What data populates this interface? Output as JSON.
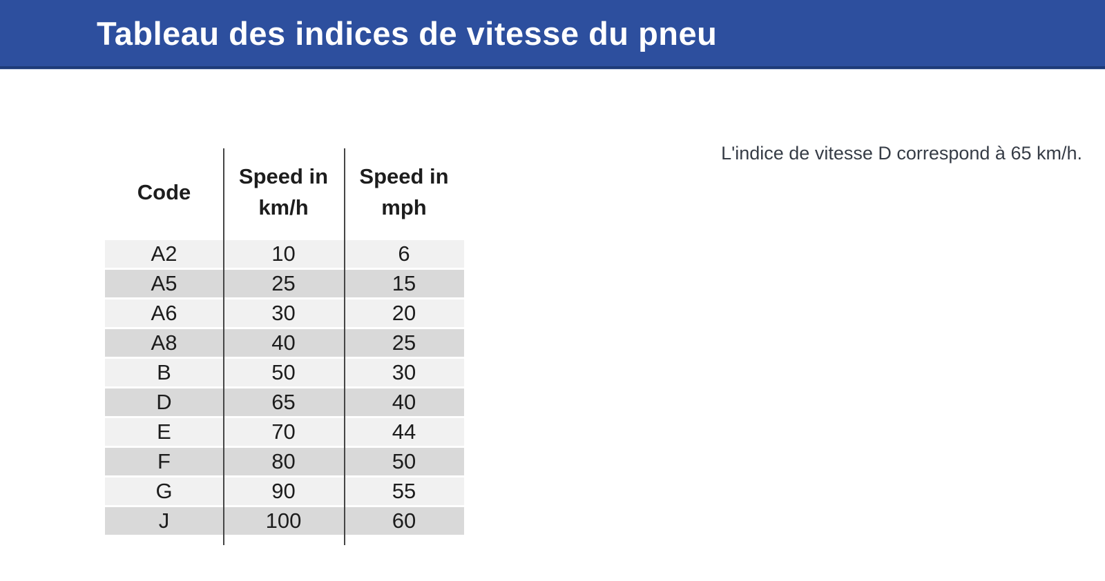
{
  "header": {
    "title": "Tableau des indices de vitesse du pneu"
  },
  "note": {
    "text": "L'indice de vitesse D correspond à 65 km/h."
  },
  "table": {
    "columns": [
      {
        "lines": [
          "Code"
        ]
      },
      {
        "lines": [
          "Speed in",
          "km/h"
        ]
      },
      {
        "lines": [
          "Speed in",
          "mph"
        ]
      }
    ]
  },
  "chart_data": {
    "type": "table",
    "title": "Tableau des indices de vitesse du pneu",
    "columns": [
      "Code",
      "Speed in km/h",
      "Speed in mph"
    ],
    "rows": [
      [
        "A2",
        "10",
        "6"
      ],
      [
        "A5",
        "25",
        "15"
      ],
      [
        "A6",
        "30",
        "20"
      ],
      [
        "A8",
        "40",
        "25"
      ],
      [
        "B",
        "50",
        "30"
      ],
      [
        "D",
        "65",
        "40"
      ],
      [
        "E",
        "70",
        "44"
      ],
      [
        "F",
        "80",
        "50"
      ],
      [
        "G",
        "90",
        "55"
      ],
      [
        "J",
        "100",
        "60"
      ]
    ],
    "annotation": "L'indice de vitesse D correspond à 65 km/h.",
    "layout": {
      "row_banding": "alternating",
      "column_dividers": true,
      "grid": "none"
    }
  },
  "colors": {
    "banner_blue": "#2d4f9e",
    "banner_edge": "#1e3b78",
    "band_light": "#f1f1f1",
    "band_dark": "#d9d9d9",
    "divider_gray": "#454545"
  }
}
